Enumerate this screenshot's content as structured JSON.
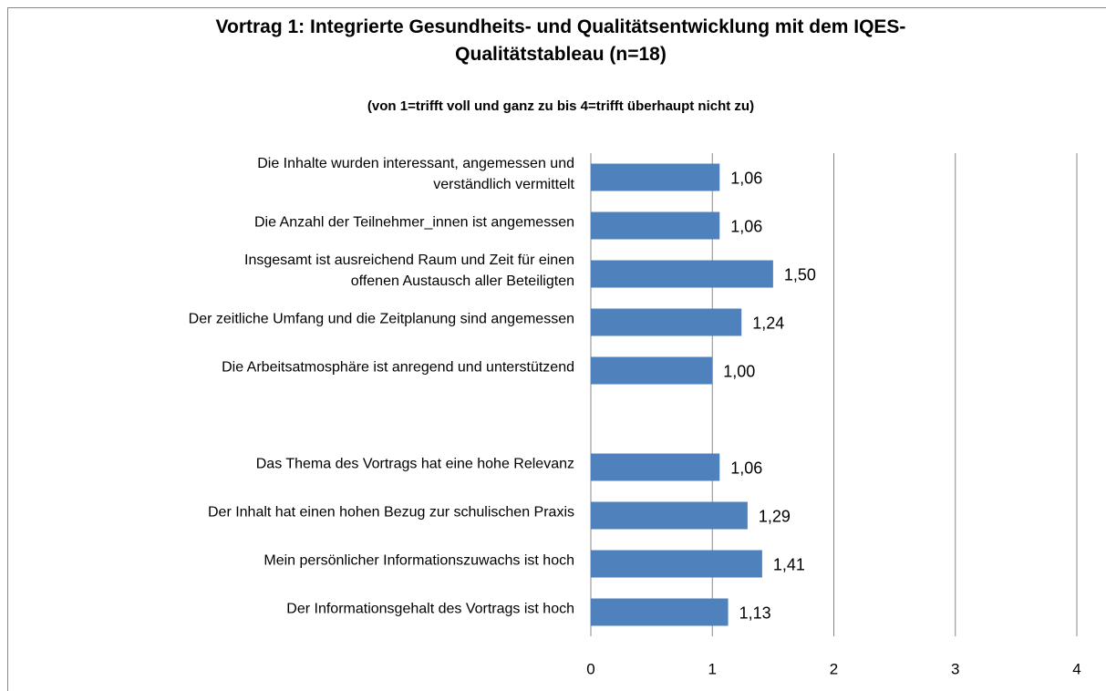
{
  "chart_data": {
    "type": "hbar",
    "title": "Vortrag 1: Integrierte Gesundheits- und Qualitätsentwicklung mit dem IQES-\nQualitätstableau (n=18)",
    "subtitle": "(von 1=trifft voll und ganz zu bis 4=trifft überhaupt nicht zu)",
    "categories": [
      "Die Inhalte wurden interessant, angemessen und\nverständlich vermittelt",
      "Die Anzahl der Teilnehmer_innen ist angemessen",
      "Insgesamt ist ausreichend  Raum und Zeit für einen\noffenen Austausch aller Beteiligten",
      "Der zeitliche Umfang und die Zeitplanung sind angemessen",
      "Die Arbeitsatmosphäre ist anregend und unterstützend",
      null,
      "Das Thema des Vortrags hat eine hohe Relevanz",
      "Der Inhalt hat einen hohen Bezug zur schulischen Praxis",
      "Mein persönlicher Informationszuwachs ist hoch",
      "Der Informationsgehalt des Vortrags ist hoch"
    ],
    "values": [
      1.06,
      1.06,
      1.5,
      1.24,
      1.0,
      null,
      1.06,
      1.29,
      1.41,
      1.13
    ],
    "value_labels": [
      "1,06",
      "1,06",
      "1,50",
      "1,24",
      "1,00",
      null,
      "1,06",
      "1,29",
      "1,41",
      "1,13"
    ],
    "color": "#4f81bd",
    "xlim": [
      0,
      4
    ],
    "xticks": [
      0,
      1,
      2,
      3,
      4
    ],
    "grid": true
  }
}
